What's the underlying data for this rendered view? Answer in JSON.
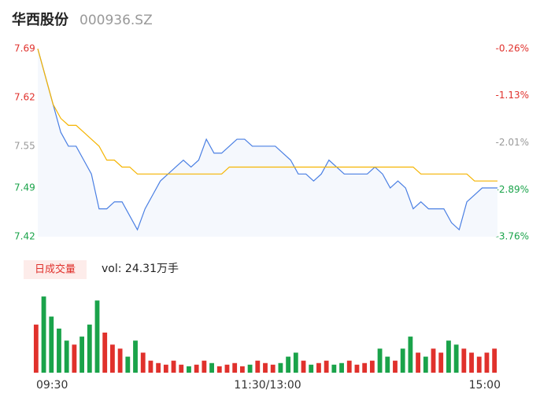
{
  "header": {
    "title": "华西股份",
    "code": "000936.SZ"
  },
  "chart_data": [
    {
      "type": "line",
      "x": [
        0,
        4,
        8,
        12,
        16,
        20,
        24,
        28,
        32,
        36,
        40,
        44,
        48,
        52,
        56,
        60,
        64,
        68,
        72,
        76,
        80,
        84,
        88,
        92,
        96,
        100,
        104,
        108,
        112,
        116,
        120,
        124,
        128,
        132,
        136,
        140,
        144,
        148,
        152,
        156,
        160,
        164,
        168,
        172,
        176,
        180,
        184,
        188,
        192,
        196,
        200,
        204,
        208,
        212,
        216,
        220,
        224,
        228,
        232,
        236,
        240
      ],
      "xlim": [
        0,
        240
      ],
      "xticks": [
        {
          "value": 0,
          "label": "09:30"
        },
        {
          "value": 120,
          "label": "11:30/13:00"
        },
        {
          "value": 240,
          "label": "15:00"
        }
      ],
      "series": [
        {
          "name": "price",
          "color": "#4a7fe3",
          "values": [
            7.69,
            7.65,
            7.61,
            7.57,
            7.55,
            7.55,
            7.53,
            7.51,
            7.46,
            7.46,
            7.47,
            7.47,
            7.45,
            7.43,
            7.46,
            7.48,
            7.5,
            7.51,
            7.52,
            7.53,
            7.52,
            7.53,
            7.56,
            7.54,
            7.54,
            7.55,
            7.56,
            7.56,
            7.55,
            7.55,
            7.55,
            7.55,
            7.54,
            7.53,
            7.51,
            7.51,
            7.5,
            7.51,
            7.53,
            7.52,
            7.51,
            7.51,
            7.51,
            7.51,
            7.52,
            7.51,
            7.49,
            7.5,
            7.49,
            7.46,
            7.47,
            7.46,
            7.46,
            7.46,
            7.44,
            7.43,
            7.47,
            7.48,
            7.49,
            7.49,
            7.49
          ]
        },
        {
          "name": "average",
          "color": "#f5b400",
          "values": [
            7.69,
            7.65,
            7.61,
            7.59,
            7.58,
            7.58,
            7.57,
            7.56,
            7.55,
            7.53,
            7.53,
            7.52,
            7.52,
            7.51,
            7.51,
            7.51,
            7.51,
            7.51,
            7.51,
            7.51,
            7.51,
            7.51,
            7.51,
            7.51,
            7.51,
            7.52,
            7.52,
            7.52,
            7.52,
            7.52,
            7.52,
            7.52,
            7.52,
            7.52,
            7.52,
            7.52,
            7.52,
            7.52,
            7.52,
            7.52,
            7.52,
            7.52,
            7.52,
            7.52,
            7.52,
            7.52,
            7.52,
            7.52,
            7.52,
            7.52,
            7.51,
            7.51,
            7.51,
            7.51,
            7.51,
            7.51,
            7.51,
            7.5,
            7.5,
            7.5,
            7.5
          ]
        }
      ],
      "ylim": [
        7.42,
        7.69
      ],
      "yticks": [
        7.69,
        7.62,
        7.55,
        7.49,
        7.42
      ],
      "ytick_colors": [
        "#e0312c",
        "#e0312c",
        "#999999",
        "#1aa34a",
        "#1aa34a"
      ],
      "y2lim": [
        -3.76,
        -0.26
      ],
      "y2ticks": [
        {
          "value": -0.26,
          "label": "-0.26%"
        },
        {
          "value": -1.13,
          "label": "-1.13%"
        },
        {
          "value": -2.01,
          "label": "-2.01%"
        },
        {
          "value": -2.89,
          "label": "-2.89%"
        },
        {
          "value": -3.76,
          "label": "-3.76%"
        }
      ]
    },
    {
      "type": "bar",
      "title": "日成交量",
      "subtitle": "vol: 24.31万手",
      "up_color": "#e0312c",
      "down_color": "#1aa34a",
      "ylim": [
        0,
        100
      ],
      "values": [
        60,
        95,
        70,
        55,
        40,
        35,
        45,
        60,
        90,
        50,
        35,
        30,
        20,
        40,
        25,
        15,
        12,
        10,
        15,
        10,
        8,
        10,
        15,
        12,
        8,
        10,
        12,
        8,
        10,
        15,
        12,
        10,
        12,
        20,
        25,
        15,
        10,
        12,
        15,
        10,
        12,
        15,
        10,
        12,
        15,
        30,
        20,
        15,
        30,
        45,
        25,
        20,
        30,
        25,
        40,
        35,
        30,
        25,
        20,
        25,
        30
      ]
    }
  ]
}
